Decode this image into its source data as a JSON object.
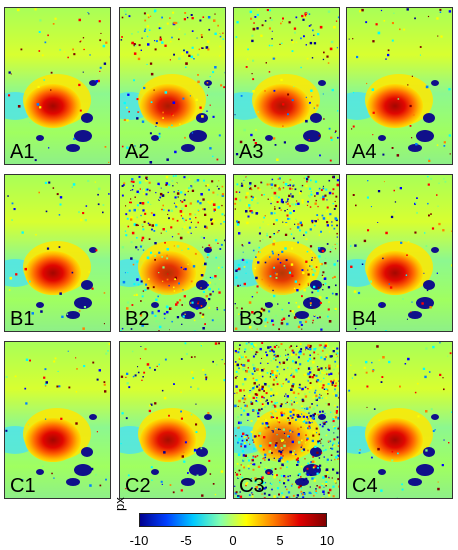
{
  "panels": [
    {
      "label": "A1",
      "noise": 0.05
    },
    {
      "label": "A2",
      "noise": 0.22
    },
    {
      "label": "A3",
      "noise": 0.18
    },
    {
      "label": "A4",
      "noise": 0.06
    },
    {
      "label": "B1",
      "noise": 0.05
    },
    {
      "label": "B2",
      "noise": 0.42
    },
    {
      "label": "B3",
      "noise": 0.48
    },
    {
      "label": "B4",
      "noise": 0.07
    },
    {
      "label": "C1",
      "noise": 0.05
    },
    {
      "label": "C2",
      "noise": 0.12
    },
    {
      "label": "C3",
      "noise": 0.85
    },
    {
      "label": "C4",
      "noise": 0.07
    }
  ],
  "colorbar": {
    "unit": "px",
    "ticks": [
      "-10",
      "-5",
      "0",
      "5",
      "10"
    ],
    "min": -10,
    "max": 10,
    "colors": [
      "#00008f",
      "#0040ff",
      "#00c8ff",
      "#80ffb0",
      "#ffff00",
      "#ff8000",
      "#e00000",
      "#800000"
    ]
  }
}
